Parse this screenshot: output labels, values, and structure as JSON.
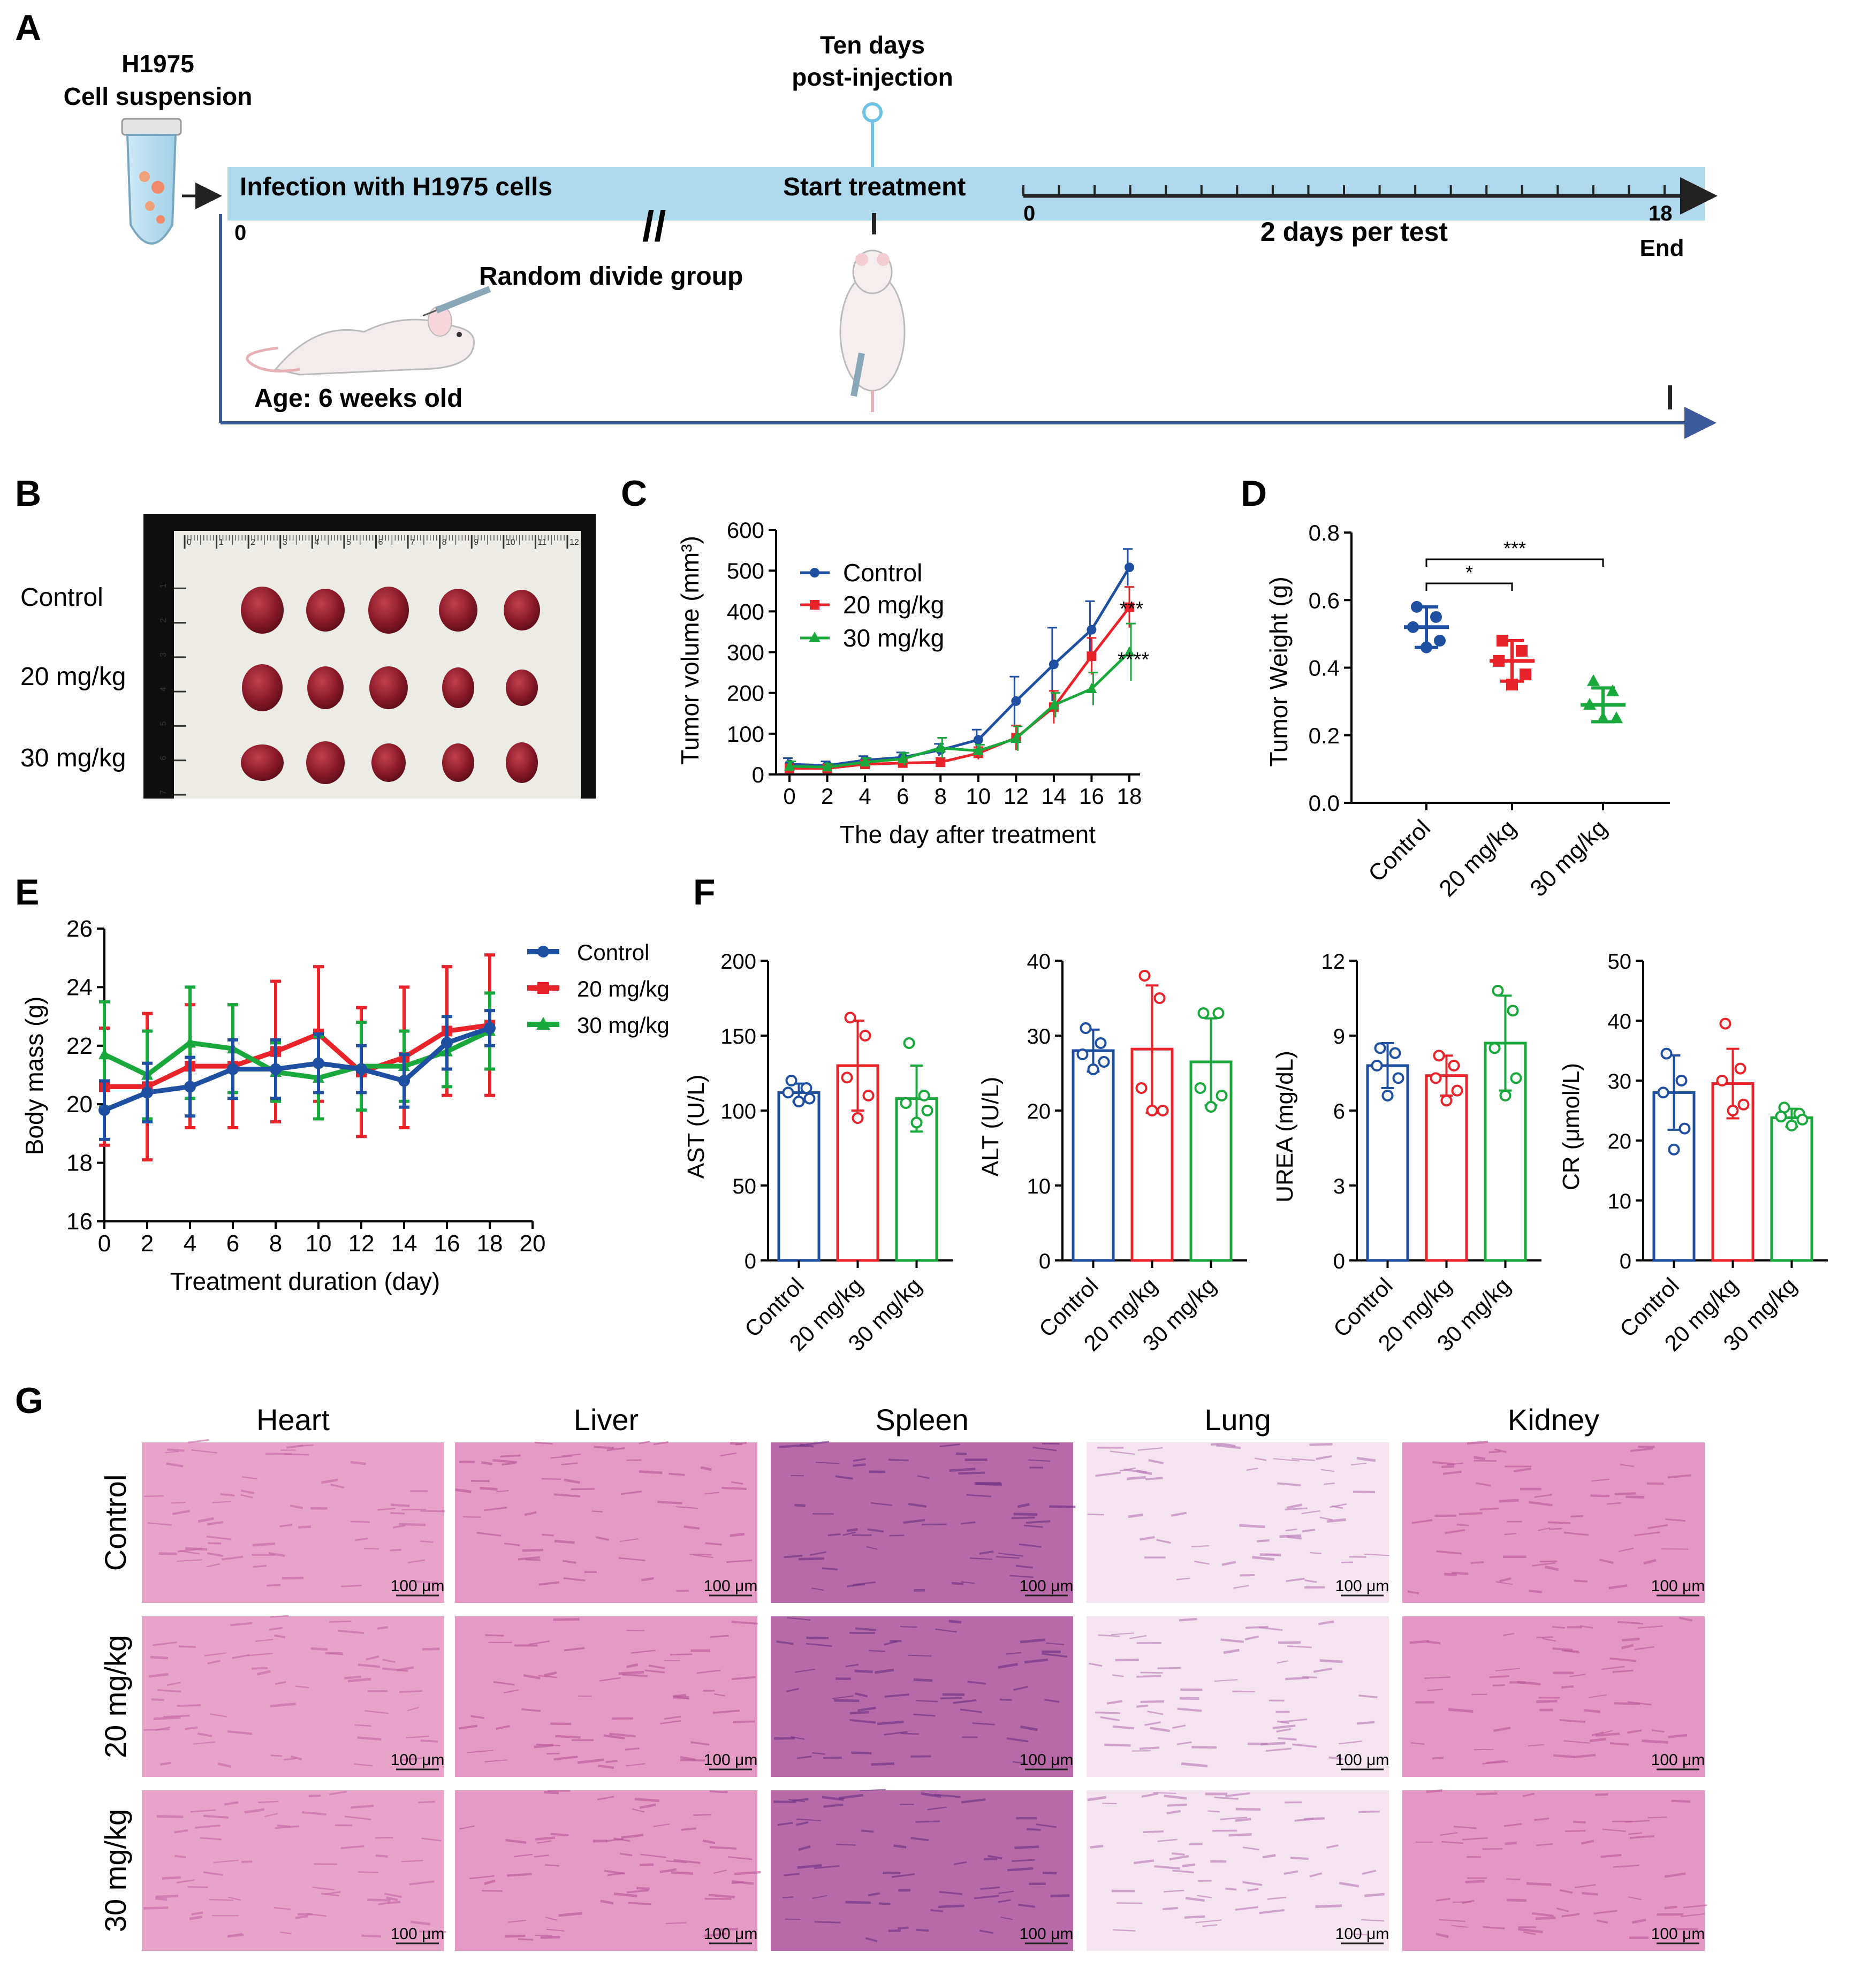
{
  "colors": {
    "control": "#1f4fa0",
    "mg20": "#e8242a",
    "mg30": "#18a83c",
    "timeline": "#aed8ec",
    "arrow": "#3b5a9a",
    "tumor": "#7a1522",
    "he_pink": "#d77fb3",
    "he_purple": "#7a3b8e"
  },
  "panel_a": {
    "letter": "A",
    "tube_title_line1": "H1975",
    "tube_title_line2": "Cell suspension",
    "infection": "Infection with H1975 cells",
    "zero": "0",
    "random": "Random divide group",
    "age": "Age: 6 weeks old",
    "ten_days_line1": "Ten days",
    "ten_days_line2": "post-injection",
    "start": "Start treatment",
    "axis_start": "0",
    "axis_end": "18",
    "end": "End",
    "per_test": "2 days per test",
    "icons": [
      "tube-icon",
      "mouse-icon",
      "syringe-icon",
      "pin-icon"
    ]
  },
  "panel_b": {
    "letter": "B",
    "rows": [
      "Control",
      "20 mg/kg",
      "30 mg/kg"
    ],
    "ruler_ticks": [
      "0",
      "1",
      "2",
      "3",
      "4",
      "5",
      "6",
      "7",
      "8",
      "9",
      "10",
      "11",
      "12"
    ],
    "ruler_side": [
      "1",
      "2",
      "3",
      "4",
      "5",
      "6",
      "7"
    ]
  },
  "panel_c": {
    "letter": "C",
    "chart_data": {
      "type": "line",
      "xlabel": "The day after treatment",
      "ylabel": "Tumor volume (mm³)",
      "x": [
        0,
        2,
        4,
        6,
        8,
        10,
        12,
        14,
        16,
        18
      ],
      "ylim": [
        0,
        600
      ],
      "yticks": [
        0,
        100,
        200,
        300,
        400,
        500,
        600
      ],
      "series": [
        {
          "name": "Control",
          "values": [
            25,
            22,
            35,
            42,
            60,
            85,
            180,
            270,
            355,
            508
          ],
          "err": [
            15,
            10,
            10,
            12,
            15,
            25,
            60,
            90,
            70,
            45
          ]
        },
        {
          "name": "20 mg/kg",
          "values": [
            15,
            15,
            25,
            28,
            30,
            52,
            90,
            165,
            290,
            410
          ],
          "err": [
            10,
            8,
            8,
            10,
            10,
            15,
            30,
            40,
            45,
            50
          ]
        },
        {
          "name": "30 mg/kg",
          "values": [
            20,
            18,
            30,
            38,
            65,
            58,
            88,
            170,
            210,
            300
          ],
          "err": [
            12,
            8,
            10,
            15,
            25,
            15,
            30,
            30,
            40,
            70
          ]
        }
      ],
      "annotations": [
        {
          "series": "20 mg/kg",
          "text": "***"
        },
        {
          "series": "30 mg/kg",
          "text": "****"
        }
      ]
    }
  },
  "panel_d": {
    "letter": "D",
    "chart_data": {
      "type": "scatter",
      "ylabel": "Tumor Weight (g)",
      "categories": [
        "Control",
        "20 mg/kg",
        "30 mg/kg"
      ],
      "ylim": [
        0,
        0.8
      ],
      "yticks": [
        "0.0",
        "0.2",
        "0.4",
        "0.6",
        "0.8"
      ],
      "points": [
        [
          0.58,
          0.55,
          0.52,
          0.48,
          0.46
        ],
        [
          0.48,
          0.45,
          0.42,
          0.38,
          0.35
        ],
        [
          0.36,
          0.33,
          0.29,
          0.25,
          0.25
        ]
      ],
      "means": [
        0.52,
        0.42,
        0.29
      ],
      "sd": [
        0.06,
        0.06,
        0.05
      ],
      "significance": [
        {
          "from": 0,
          "to": 1,
          "text": "*"
        },
        {
          "from": 0,
          "to": 2,
          "text": "***"
        }
      ]
    }
  },
  "panel_e": {
    "letter": "E",
    "chart_data": {
      "type": "line",
      "xlabel": "Treatment duration (day)",
      "ylabel": "Body mass (g)",
      "x": [
        0,
        2,
        4,
        6,
        8,
        10,
        12,
        14,
        16,
        18
      ],
      "xlim": [
        0,
        20
      ],
      "xticks": [
        0,
        2,
        4,
        6,
        8,
        10,
        12,
        14,
        16,
        18,
        20
      ],
      "ylim": [
        16,
        26
      ],
      "yticks": [
        16,
        18,
        20,
        22,
        24,
        26
      ],
      "series": [
        {
          "name": "Control",
          "values": [
            19.8,
            20.4,
            20.6,
            21.2,
            21.2,
            21.4,
            21.2,
            20.8,
            22.1,
            22.6
          ],
          "err": [
            1.0,
            1.0,
            1.0,
            1.0,
            1.0,
            1.0,
            0.8,
            0.9,
            0.9,
            0.6
          ]
        },
        {
          "name": "20 mg/kg",
          "values": [
            20.6,
            20.6,
            21.3,
            21.3,
            21.8,
            22.4,
            21.1,
            21.6,
            22.5,
            22.7
          ],
          "err": [
            2.0,
            2.5,
            2.1,
            2.1,
            2.4,
            2.3,
            2.2,
            2.4,
            2.2,
            2.4
          ]
        },
        {
          "name": "30 mg/kg",
          "values": [
            21.7,
            21.0,
            22.1,
            21.9,
            21.1,
            20.9,
            21.3,
            21.3,
            21.8,
            22.5
          ],
          "err": [
            1.8,
            1.5,
            1.9,
            1.5,
            1.0,
            1.4,
            1.5,
            1.2,
            1.2,
            1.3
          ]
        }
      ]
    }
  },
  "panel_f": {
    "letter": "F",
    "chart_data": [
      {
        "type": "bar",
        "ylabel": "AST (U/L)",
        "categories": [
          "Control",
          "20 mg/kg",
          "30 mg/kg"
        ],
        "ylim": [
          0,
          200
        ],
        "yticks": [
          0,
          50,
          100,
          150,
          200
        ],
        "values": [
          112,
          130,
          108
        ],
        "sd": [
          6,
          30,
          22
        ],
        "points": [
          [
            120,
            115,
            112,
            108,
            106
          ],
          [
            162,
            150,
            122,
            110,
            95
          ],
          [
            145,
            110,
            105,
            100,
            92
          ]
        ]
      },
      {
        "type": "bar",
        "ylabel": "ALT (U/L)",
        "categories": [
          "Control",
          "20 mg/kg",
          "30 mg/kg"
        ],
        "ylim": [
          0,
          40
        ],
        "yticks": [
          0,
          10,
          20,
          30,
          40
        ],
        "values": [
          28,
          28.2,
          26.5
        ],
        "sd": [
          2.8,
          8.5,
          5.8
        ],
        "points": [
          [
            31,
            29,
            27.5,
            26.5,
            25.5
          ],
          [
            38,
            35,
            23,
            20,
            20
          ],
          [
            33,
            33,
            23,
            22,
            20.5
          ]
        ]
      },
      {
        "type": "bar",
        "ylabel": "UREA (mg/dL)",
        "categories": [
          "Control",
          "20 mg/kg",
          "30 mg/kg"
        ],
        "ylim": [
          0,
          12
        ],
        "yticks": [
          0,
          3,
          6,
          9,
          12
        ],
        "values": [
          7.8,
          7.4,
          8.7
        ],
        "sd": [
          0.9,
          0.8,
          1.9
        ],
        "points": [
          [
            8.5,
            8.3,
            7.8,
            7.3,
            6.6
          ],
          [
            8.2,
            7.8,
            7.3,
            6.8,
            6.4
          ],
          [
            10.8,
            10,
            8.5,
            7.3,
            6.6
          ]
        ]
      },
      {
        "type": "bar",
        "ylabel": "CR (μmol/L)",
        "categories": [
          "Control",
          "20 mg/kg",
          "30 mg/kg"
        ],
        "ylim": [
          0,
          50
        ],
        "yticks": [
          0,
          10,
          20,
          30,
          40,
          50
        ],
        "values": [
          28,
          29.5,
          23.8
        ],
        "sd": [
          6.2,
          5.8,
          1.5
        ],
        "points": [
          [
            34.5,
            30,
            28,
            22,
            18.5
          ],
          [
            39.5,
            32,
            30,
            26,
            25
          ],
          [
            25.5,
            24.5,
            24,
            23.5,
            22.5
          ]
        ]
      }
    ]
  },
  "panel_g": {
    "letter": "G",
    "columns": [
      "Heart",
      "Liver",
      "Spleen",
      "Lung",
      "Kidney"
    ],
    "rows": [
      "Control",
      "20 mg/kg",
      "30 mg/kg"
    ],
    "scale": "100 μm"
  }
}
